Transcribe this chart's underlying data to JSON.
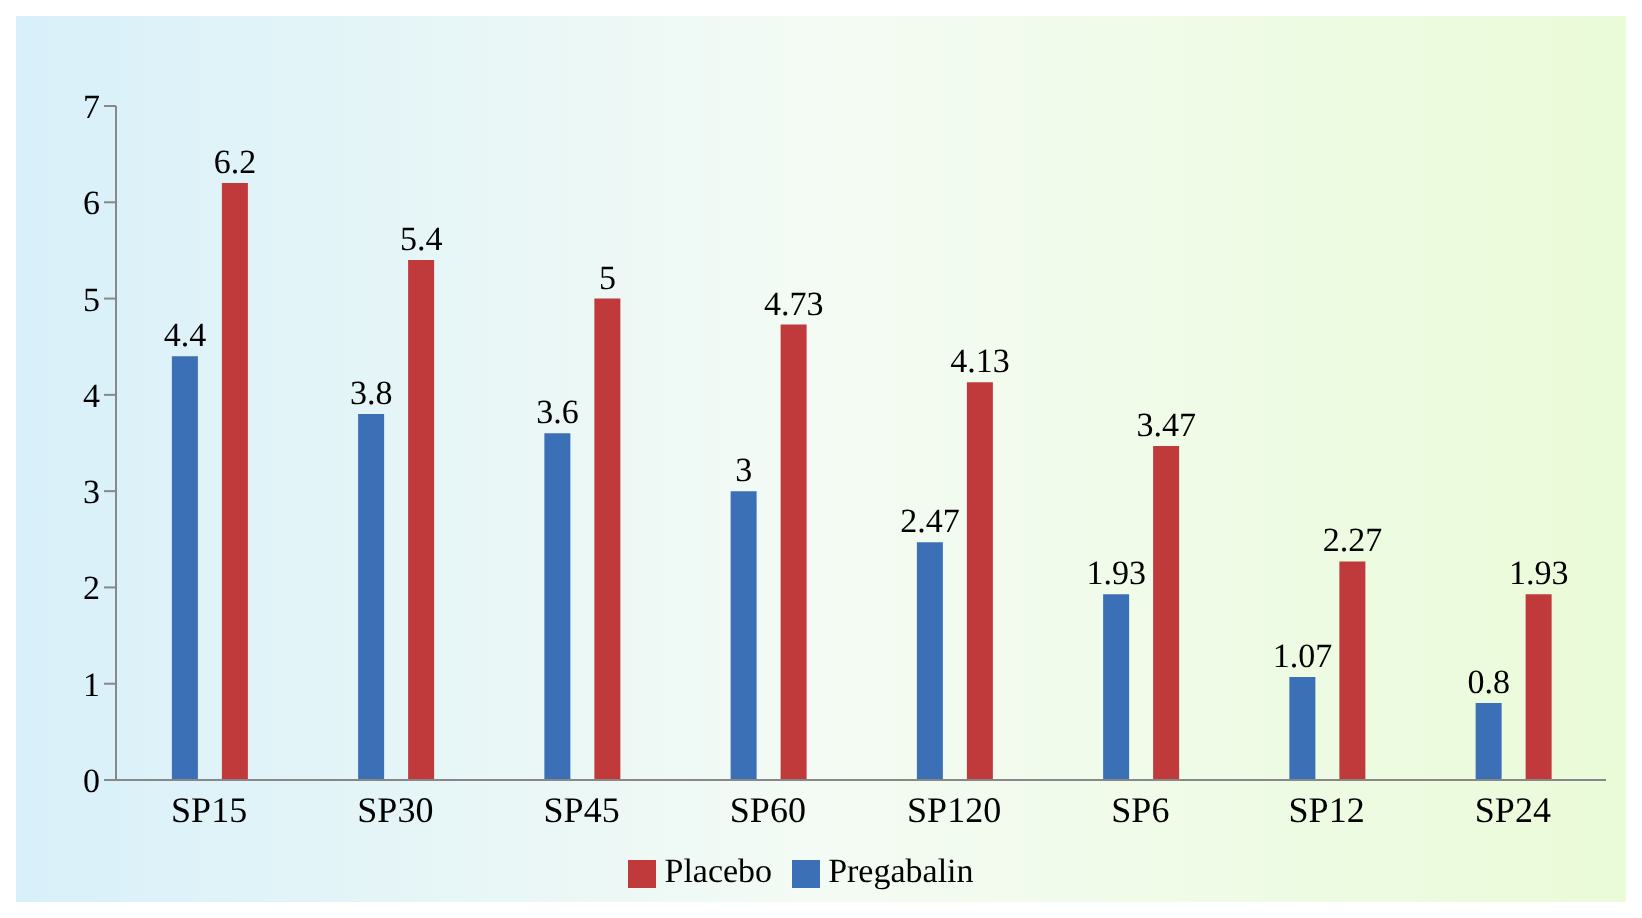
{
  "chart_data": {
    "type": "bar",
    "categories": [
      "SP15",
      "SP30",
      "SP45",
      "SP60",
      "SP120",
      "SP6",
      "SP12",
      "SP24"
    ],
    "series": [
      {
        "name": "Pregabalin",
        "color": "#3b6fb6",
        "values": [
          4.4,
          3.8,
          3.6,
          3,
          2.47,
          1.93,
          1.07,
          0.8
        ]
      },
      {
        "name": "Placebo",
        "color": "#c0393b",
        "values": [
          6.2,
          5.4,
          5,
          4.73,
          4.13,
          3.47,
          2.27,
          1.93
        ]
      }
    ],
    "ylim": [
      0,
      7
    ],
    "yticks": [
      0,
      1,
      2,
      3,
      4,
      5,
      6,
      7
    ],
    "grid": false,
    "legend": "bottom",
    "data_labels": true
  }
}
